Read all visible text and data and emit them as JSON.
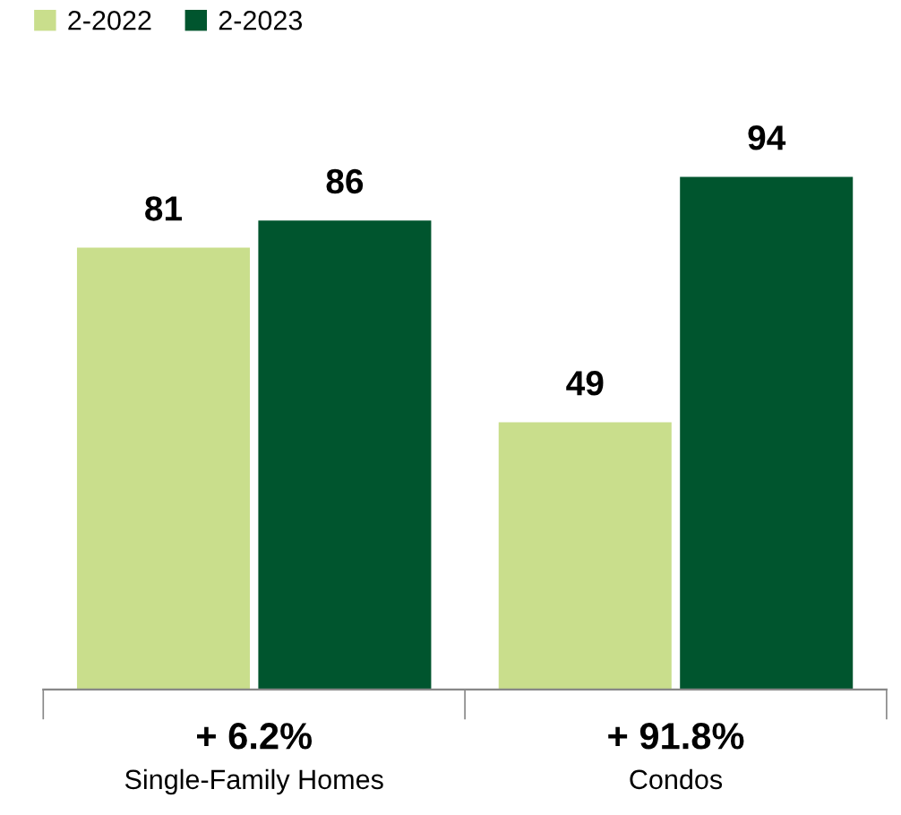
{
  "chart_data": {
    "type": "bar",
    "categories": [
      "Single-Family Homes",
      "Condos"
    ],
    "series": [
      {
        "name": "2-2022",
        "color": "#c9de8c",
        "values": [
          81,
          49
        ]
      },
      {
        "name": "2-2023",
        "color": "#00552e",
        "values": [
          86,
          94
        ]
      }
    ],
    "data_labels": true,
    "legend": "top left",
    "grid": false,
    "annotations": [
      "+ 6.2%",
      "+ 91.8%"
    ]
  }
}
